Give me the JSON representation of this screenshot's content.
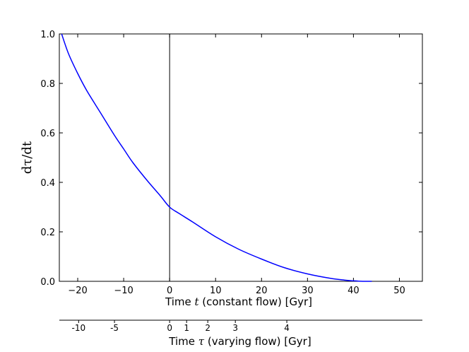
{
  "chart_data": {
    "type": "line",
    "title": "",
    "ylabel": "dτ/dt",
    "xlabel_prefix": "Time ",
    "xlabel_var": "t",
    "xlabel_suffix": " (constant flow) [Gyr]",
    "xlim": [
      -24,
      55
    ],
    "ylim": [
      0.0,
      1.0
    ],
    "x_ticks": [
      -20,
      -10,
      0,
      10,
      20,
      30,
      40,
      50
    ],
    "y_ticks": [
      "0.0",
      "0.2",
      "0.4",
      "0.6",
      "0.8",
      "1.0"
    ],
    "vertical_line_x": 0,
    "series": [
      {
        "color": "#0000ff",
        "x": [
          -23.5,
          -22,
          -20,
          -18,
          -15,
          -12,
          -10,
          -8,
          -5,
          -2,
          0,
          2,
          5,
          10,
          15,
          20,
          25,
          30,
          35,
          38,
          40,
          42,
          44
        ],
        "y": [
          1.0,
          0.92,
          0.84,
          0.77,
          0.68,
          0.59,
          0.535,
          0.48,
          0.41,
          0.345,
          0.3,
          0.275,
          0.24,
          0.18,
          0.13,
          0.09,
          0.055,
          0.03,
          0.012,
          0.005,
          0.002,
          0.0,
          0.0
        ]
      }
    ],
    "secondary_axis": {
      "label_prefix": "Time ",
      "label_var": "τ",
      "label_suffix": " (varying flow) [Gyr]",
      "ticks": [
        {
          "label": "-10",
          "t": -19.8
        },
        {
          "label": "-5",
          "t": -12.0
        },
        {
          "label": "0",
          "t": 0
        },
        {
          "label": "1",
          "t": 3.7
        },
        {
          "label": "2",
          "t": 8.3
        },
        {
          "label": "3",
          "t": 14.3
        },
        {
          "label": "4",
          "t": 25.5
        }
      ]
    }
  }
}
